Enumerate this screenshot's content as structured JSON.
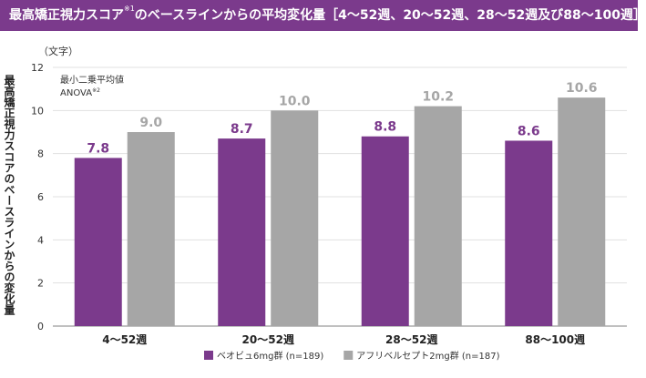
{
  "header": {
    "title_before": "最高矯正視力スコア",
    "title_sup": "※1",
    "title_after": "のベースラインからの平均変化量［4～52週、20～52週、28～52週及び88～100週］"
  },
  "chart_data": {
    "type": "bar",
    "categories": [
      "4～52週",
      "20～52週",
      "28～52週",
      "88～100週"
    ],
    "series": [
      {
        "name": "ベオビュ6mg群 (n=189)",
        "values": [
          7.8,
          8.7,
          8.8,
          8.6
        ],
        "color": "#7b3a8c"
      },
      {
        "name": "アフリベルセプト2mg群 (n=187)",
        "values": [
          9.0,
          10.0,
          10.2,
          10.6
        ],
        "color": "#a6a6a6"
      }
    ],
    "data_labels": [
      [
        "7.8",
        "8.7",
        "8.8",
        "8.6"
      ],
      [
        "9.0",
        "10.0",
        "10.2",
        "10.6"
      ]
    ],
    "ylabel": "最高矯正視力スコアのベースラインからの変化量",
    "y_unit": "（文字）",
    "ylim": [
      0,
      12
    ],
    "yticks": [
      "0",
      "2",
      "4",
      "6",
      "8",
      "10",
      "12"
    ],
    "grid": true,
    "legend_position": "bottom",
    "annotation": {
      "line1": "最小二乗平均値",
      "line2": "ANOVA",
      "line2_sup": "※2"
    }
  }
}
